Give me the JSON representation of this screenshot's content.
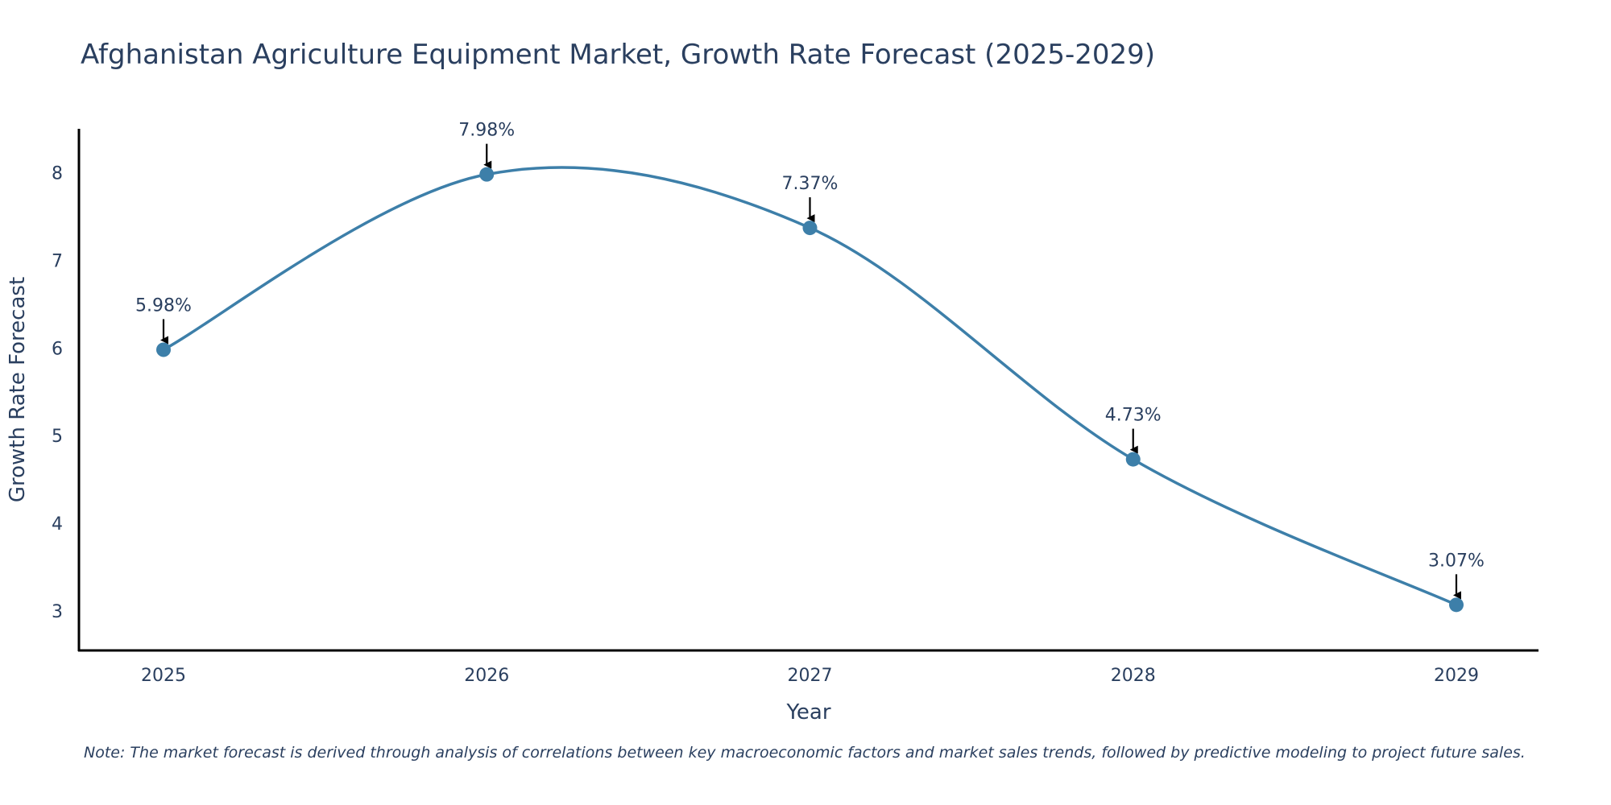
{
  "title": "Afghanistan Agriculture Equipment Market, Growth Rate Forecast (2025-2029)",
  "note": "Note: The market forecast is derived through analysis of correlations between key macroeconomic factors and market sales trends, followed by predictive modeling to project future sales.",
  "colors": {
    "line": "#3d7fa9",
    "marker": "#3d7fa9",
    "axis": "#000000",
    "text": "#2a3f5f",
    "arrow": "#000000"
  },
  "chart_data": {
    "type": "line",
    "title": "Afghanistan Agriculture Equipment Market, Growth Rate Forecast (2025-2029)",
    "xlabel": "Year",
    "ylabel": "Growth Rate Forecast",
    "categories": [
      "2025",
      "2026",
      "2027",
      "2028",
      "2029"
    ],
    "values": [
      5.98,
      7.98,
      7.37,
      4.73,
      3.07
    ],
    "data_labels": [
      "5.98%",
      "7.98%",
      "7.37%",
      "4.73%",
      "3.07%"
    ],
    "yticks": [
      3,
      4,
      5,
      6,
      7,
      8
    ],
    "ylim": [
      2.55,
      8.5
    ],
    "grid": false,
    "line_shape": "spline"
  }
}
